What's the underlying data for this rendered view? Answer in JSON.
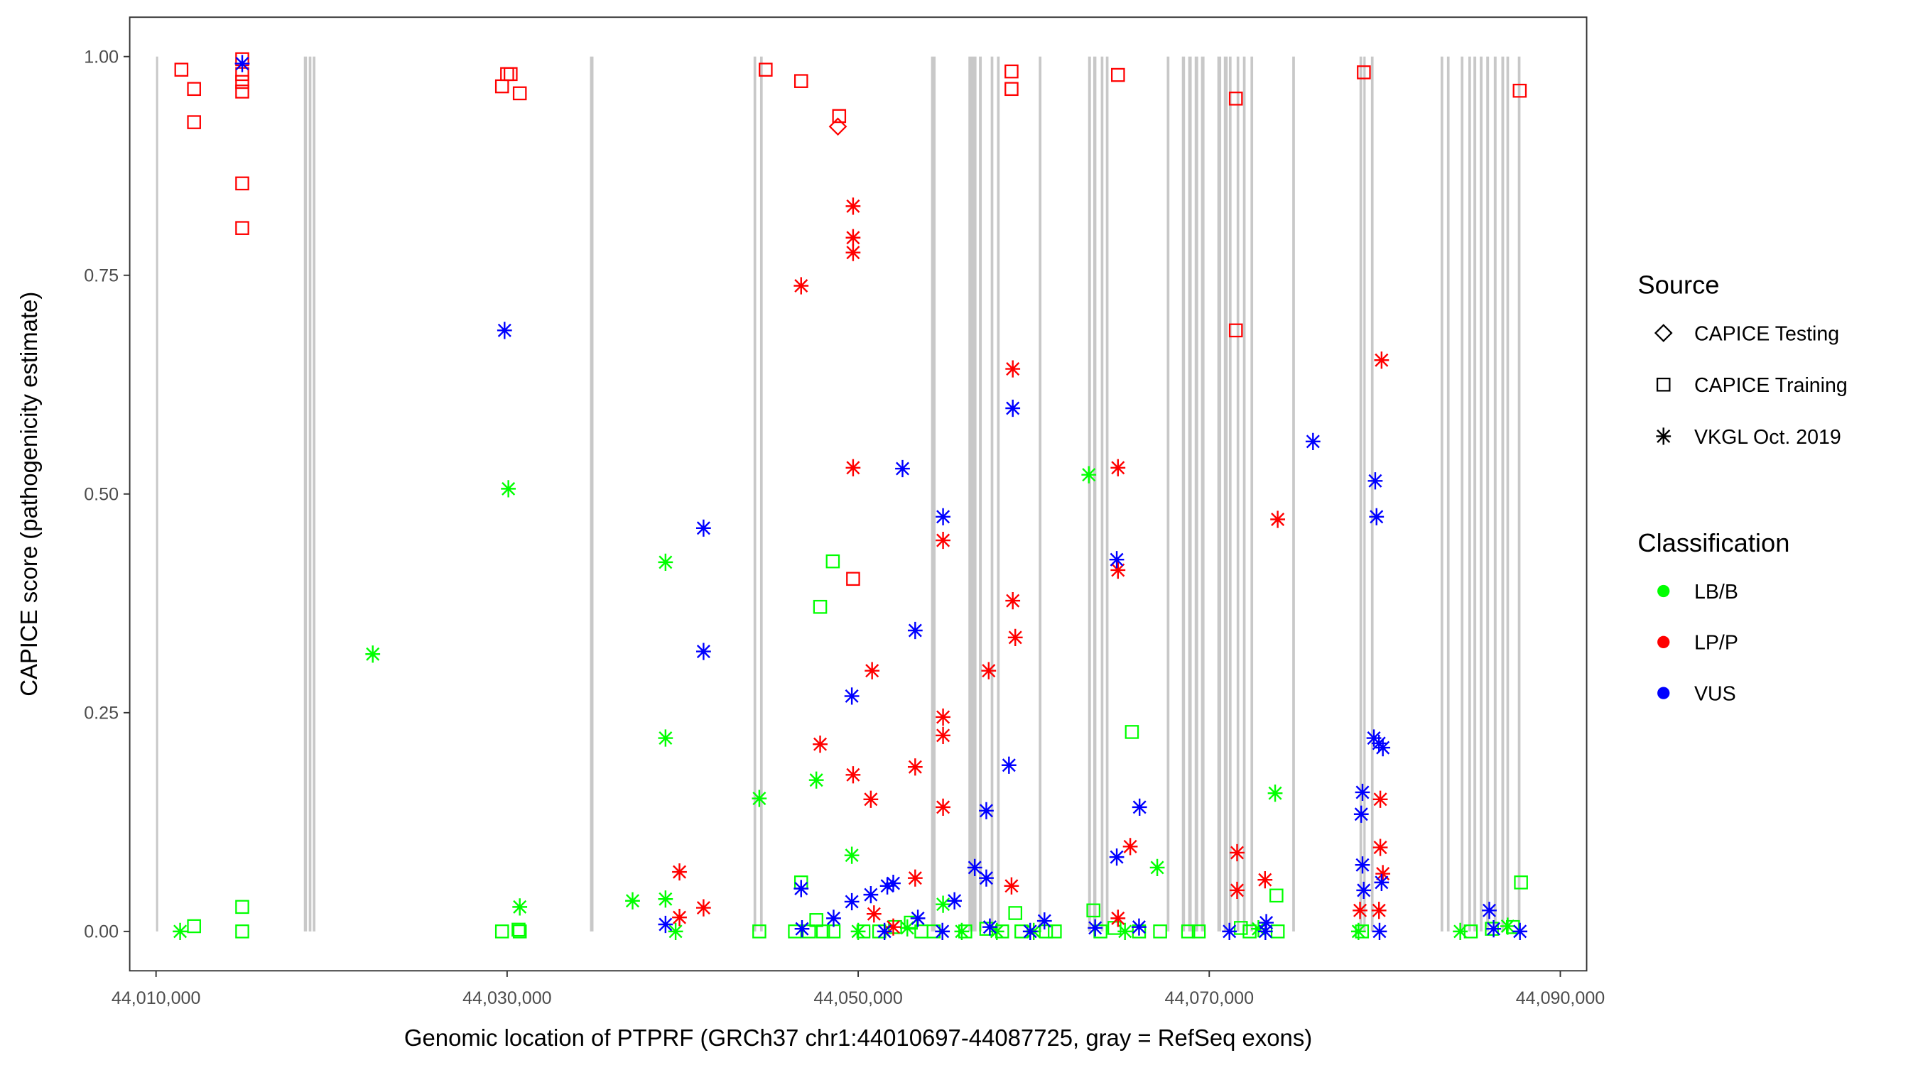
{
  "chart_data": {
    "type": "scatter",
    "xlabel": "Genomic location of PTPRF (GRCh37 chr1:44010697-44087725, gray = RefSeq exons)",
    "ylabel": "CAPICE score (pathogenicity estimate)",
    "xlim": [
      44008500,
      44091500
    ],
    "ylim": [
      -0.045,
      1.045
    ],
    "x_ticks": [
      44010000,
      44030000,
      44050000,
      44070000,
      44090000
    ],
    "x_tick_labels": [
      "44,010,000",
      "44,030,000",
      "44,050,000",
      "44,070,000",
      "44,090,000"
    ],
    "y_ticks": [
      0,
      0.25,
      0.5,
      0.75,
      1
    ],
    "y_tick_labels": [
      "0.00",
      "0.25",
      "0.50",
      "0.75",
      "1.00"
    ],
    "grid": false,
    "legend": {
      "placement": "right",
      "source_title": "Source",
      "source_items": [
        {
          "label": "CAPICE Testing",
          "shape": "diamond"
        },
        {
          "label": "CAPICE Training",
          "shape": "square"
        },
        {
          "label": "VKGL Oct. 2019",
          "shape": "asterisk"
        }
      ],
      "class_title": "Classification",
      "class_items": [
        {
          "label": "LB/B",
          "color": "#00ff00"
        },
        {
          "label": "LP/P",
          "color": "#ff0000"
        },
        {
          "label": "VUS",
          "color": "#0000ff"
        }
      ]
    },
    "colors": {
      "LB/B": "#00ff00",
      "LP/P": "#ff0000",
      "VUS": "#0000ff",
      "exon": "#c8c8c8"
    },
    "exons": [
      [
        44010000,
        120
      ],
      [
        44018420,
        180
      ],
      [
        44018700,
        150
      ],
      [
        44018930,
        150
      ],
      [
        44034720,
        200
      ],
      [
        44044040,
        150
      ],
      [
        44044410,
        150
      ],
      [
        44054150,
        260
      ],
      [
        44056280,
        460
      ],
      [
        44056880,
        160
      ],
      [
        44057550,
        150
      ],
      [
        44057910,
        150
      ],
      [
        44060290,
        150
      ],
      [
        44063100,
        160
      ],
      [
        44063390,
        180
      ],
      [
        44063820,
        150
      ],
      [
        44064110,
        150
      ],
      [
        44067580,
        150
      ],
      [
        44068440,
        180
      ],
      [
        44068800,
        200
      ],
      [
        44069170,
        200
      ],
      [
        44069530,
        200
      ],
      [
        44070460,
        220
      ],
      [
        44070830,
        220
      ],
      [
        44071120,
        150
      ],
      [
        44071560,
        150
      ],
      [
        44071920,
        150
      ],
      [
        44072350,
        150
      ],
      [
        44074730,
        150
      ],
      [
        44078560,
        150
      ],
      [
        44078780,
        130
      ],
      [
        44079210,
        150
      ],
      [
        44083180,
        150
      ],
      [
        44083540,
        150
      ],
      [
        44084330,
        150
      ],
      [
        44084760,
        150
      ],
      [
        44085050,
        160
      ],
      [
        44085410,
        160
      ],
      [
        44085780,
        160
      ],
      [
        44086210,
        160
      ],
      [
        44086640,
        160
      ],
      [
        44086930,
        150
      ],
      [
        44087580,
        150
      ]
    ],
    "points": [
      [
        44011444,
        0.985,
        "square",
        "LP/P"
      ],
      [
        44012166,
        0.963,
        "square",
        "LP/P"
      ],
      [
        44012166,
        0.925,
        "square",
        "LP/P"
      ],
      [
        44014910,
        0.997,
        "square",
        "LP/P"
      ],
      [
        44014910,
        0.98,
        "square",
        "LP/P"
      ],
      [
        44014910,
        0.971,
        "square",
        "LP/P"
      ],
      [
        44014910,
        0.96,
        "square",
        "LP/P"
      ],
      [
        44014910,
        0.855,
        "square",
        "LP/P"
      ],
      [
        44014910,
        0.804,
        "square",
        "LP/P"
      ],
      [
        44029711,
        0.966,
        "square",
        "LP/P"
      ],
      [
        44030000,
        0.98,
        "square",
        "LP/P"
      ],
      [
        44030200,
        0.98,
        "square",
        "LP/P"
      ],
      [
        44030721,
        0.958,
        "square",
        "LP/P"
      ],
      [
        44044728,
        0.985,
        "square",
        "LP/P"
      ],
      [
        44046750,
        0.972,
        "square",
        "LP/P"
      ],
      [
        44048916,
        0.932,
        "square",
        "LP/P"
      ],
      [
        44049710,
        0.403,
        "square",
        "LP/P"
      ],
      [
        44058735,
        0.983,
        "square",
        "LP/P"
      ],
      [
        44058735,
        0.963,
        "square",
        "LP/P"
      ],
      [
        44064800,
        0.979,
        "square",
        "LP/P"
      ],
      [
        44071514,
        0.952,
        "square",
        "LP/P"
      ],
      [
        44071514,
        0.687,
        "square",
        "LP/P"
      ],
      [
        44078806,
        0.982,
        "square",
        "LP/P"
      ],
      [
        44087687,
        0.961,
        "square",
        "LP/P"
      ],
      [
        44048844,
        0.92,
        "diamond",
        "LP/P"
      ],
      [
        44012166,
        0.006,
        "square",
        "LB/B"
      ],
      [
        44014910,
        0.028,
        "square",
        "LB/B"
      ],
      [
        44014910,
        0,
        "square",
        "LB/B"
      ],
      [
        44029711,
        0,
        "square",
        "LB/B"
      ],
      [
        44030721,
        0,
        "square",
        "LB/B"
      ],
      [
        44030650,
        0.002,
        "square",
        "LB/B"
      ],
      [
        44044367,
        0,
        "square",
        "LB/B"
      ],
      [
        44046750,
        0.056,
        "square",
        "LB/B"
      ],
      [
        44048555,
        0.423,
        "square",
        "LB/B"
      ],
      [
        44047833,
        0.371,
        "square",
        "LB/B"
      ],
      [
        44047616,
        0.013,
        "square",
        "LB/B"
      ],
      [
        44058950,
        0.021,
        "square",
        "LB/B"
      ],
      [
        44065594,
        0.228,
        "square",
        "LB/B"
      ],
      [
        44063400,
        0.024,
        "square",
        "LB/B"
      ],
      [
        44073826,
        0.041,
        "square",
        "LB/B"
      ],
      [
        44087760,
        0.056,
        "square",
        "LB/B"
      ],
      [
        44046400,
        0,
        "square",
        "LB/B"
      ],
      [
        44047200,
        0,
        "square",
        "LB/B"
      ],
      [
        44048000,
        0,
        "square",
        "LB/B"
      ],
      [
        44048600,
        0,
        "square",
        "LB/B"
      ],
      [
        44050300,
        0,
        "square",
        "LB/B"
      ],
      [
        44051200,
        0,
        "square",
        "LB/B"
      ],
      [
        44052100,
        0.005,
        "square",
        "LB/B"
      ],
      [
        44053000,
        0.01,
        "square",
        "LB/B"
      ],
      [
        44053600,
        0,
        "square",
        "LB/B"
      ],
      [
        44054300,
        0,
        "square",
        "LB/B"
      ],
      [
        44056100,
        0,
        "square",
        "LB/B"
      ],
      [
        44057300,
        0.003,
        "square",
        "LB/B"
      ],
      [
        44058200,
        0,
        "square",
        "LB/B"
      ],
      [
        44059300,
        0,
        "square",
        "LB/B"
      ],
      [
        44060700,
        0,
        "square",
        "LB/B"
      ],
      [
        44061200,
        0,
        "square",
        "LB/B"
      ],
      [
        44063800,
        0,
        "square",
        "LB/B"
      ],
      [
        44064600,
        0.004,
        "square",
        "LB/B"
      ],
      [
        44066000,
        0,
        "square",
        "LB/B"
      ],
      [
        44067200,
        0,
        "square",
        "LB/B"
      ],
      [
        44068800,
        0,
        "square",
        "LB/B"
      ],
      [
        44069400,
        0,
        "square",
        "LB/B"
      ],
      [
        44071800,
        0.004,
        "square",
        "LB/B"
      ],
      [
        44072300,
        0,
        "square",
        "LB/B"
      ],
      [
        44073900,
        0,
        "square",
        "LB/B"
      ],
      [
        44078700,
        0,
        "square",
        "LB/B"
      ],
      [
        44084900,
        0,
        "square",
        "LB/B"
      ],
      [
        44086100,
        0.003,
        "square",
        "LB/B"
      ],
      [
        44087300,
        0.005,
        "square",
        "LB/B"
      ],
      [
        44011372,
        0,
        "asterisk",
        "LB/B"
      ],
      [
        44022346,
        0.317,
        "asterisk",
        "LB/B"
      ],
      [
        44030072,
        0.506,
        "asterisk",
        "LB/B"
      ],
      [
        44030721,
        0.028,
        "asterisk",
        "LB/B"
      ],
      [
        44037147,
        0.035,
        "asterisk",
        "LB/B"
      ],
      [
        44039024,
        0.422,
        "asterisk",
        "LB/B"
      ],
      [
        44039024,
        0.221,
        "asterisk",
        "LB/B"
      ],
      [
        44039024,
        0.037,
        "asterisk",
        "LB/B"
      ],
      [
        44039600,
        0,
        "asterisk",
        "LB/B"
      ],
      [
        44044367,
        0.152,
        "asterisk",
        "LB/B"
      ],
      [
        44047616,
        0.173,
        "asterisk",
        "LB/B"
      ],
      [
        44049638,
        0.087,
        "asterisk",
        "LB/B"
      ],
      [
        44054836,
        0.031,
        "asterisk",
        "LB/B"
      ],
      [
        44063139,
        0.522,
        "asterisk",
        "LB/B"
      ],
      [
        44067038,
        0.073,
        "asterisk",
        "LB/B"
      ],
      [
        44073754,
        0.158,
        "asterisk",
        "LB/B"
      ],
      [
        44050000,
        0,
        "asterisk",
        "LB/B"
      ],
      [
        44052800,
        0.004,
        "asterisk",
        "LB/B"
      ],
      [
        44055900,
        0,
        "asterisk",
        "LB/B"
      ],
      [
        44057900,
        0,
        "asterisk",
        "LB/B"
      ],
      [
        44060000,
        0,
        "asterisk",
        "LB/B"
      ],
      [
        44065200,
        0,
        "asterisk",
        "LB/B"
      ],
      [
        44072800,
        0.003,
        "asterisk",
        "LB/B"
      ],
      [
        44078500,
        0,
        "asterisk",
        "LB/B"
      ],
      [
        44084300,
        0,
        "asterisk",
        "LB/B"
      ],
      [
        44087000,
        0.006,
        "asterisk",
        "LB/B"
      ],
      [
        44039819,
        0.068,
        "asterisk",
        "LP/P"
      ],
      [
        44039819,
        0.016,
        "asterisk",
        "LP/P"
      ],
      [
        44041190,
        0.027,
        "asterisk",
        "LP/P"
      ],
      [
        44046750,
        0.738,
        "asterisk",
        "LP/P"
      ],
      [
        44047833,
        0.214,
        "asterisk",
        "LP/P"
      ],
      [
        44049710,
        0.829,
        "asterisk",
        "LP/P"
      ],
      [
        44049710,
        0.793,
        "asterisk",
        "LP/P"
      ],
      [
        44049710,
        0.776,
        "asterisk",
        "LP/P"
      ],
      [
        44049710,
        0.53,
        "asterisk",
        "LP/P"
      ],
      [
        44049710,
        0.179,
        "asterisk",
        "LP/P"
      ],
      [
        44050793,
        0.298,
        "asterisk",
        "LP/P"
      ],
      [
        44050720,
        0.151,
        "asterisk",
        "LP/P"
      ],
      [
        44053248,
        0.188,
        "asterisk",
        "LP/P"
      ],
      [
        44053248,
        0.061,
        "asterisk",
        "LP/P"
      ],
      [
        44054836,
        0.447,
        "asterisk",
        "LP/P"
      ],
      [
        44054836,
        0.245,
        "asterisk",
        "LP/P"
      ],
      [
        44054836,
        0.224,
        "asterisk",
        "LP/P"
      ],
      [
        44054836,
        0.142,
        "asterisk",
        "LP/P"
      ],
      [
        44057435,
        0.298,
        "asterisk",
        "LP/P"
      ],
      [
        44058735,
        0.052,
        "asterisk",
        "LP/P"
      ],
      [
        44058807,
        0.643,
        "asterisk",
        "LP/P"
      ],
      [
        44058807,
        0.378,
        "asterisk",
        "LP/P"
      ],
      [
        44058950,
        0.336,
        "asterisk",
        "LP/P"
      ],
      [
        44064800,
        0.53,
        "asterisk",
        "LP/P"
      ],
      [
        44064800,
        0.413,
        "asterisk",
        "LP/P"
      ],
      [
        44065500,
        0.097,
        "asterisk",
        "LP/P"
      ],
      [
        44064800,
        0.015,
        "asterisk",
        "LP/P"
      ],
      [
        44071587,
        0.09,
        "asterisk",
        "LP/P"
      ],
      [
        44071587,
        0.047,
        "asterisk",
        "LP/P"
      ],
      [
        44073177,
        0.059,
        "asterisk",
        "LP/P"
      ],
      [
        44073899,
        0.471,
        "asterisk",
        "LP/P"
      ],
      [
        44079817,
        0.653,
        "asterisk",
        "LP/P"
      ],
      [
        44079745,
        0.151,
        "asterisk",
        "LP/P"
      ],
      [
        44079745,
        0.096,
        "asterisk",
        "LP/P"
      ],
      [
        44079890,
        0.066,
        "asterisk",
        "LP/P"
      ],
      [
        44078590,
        0.024,
        "asterisk",
        "LP/P"
      ],
      [
        44079670,
        0.024,
        "asterisk",
        "LP/P"
      ],
      [
        44050900,
        0.02,
        "asterisk",
        "LP/P"
      ],
      [
        44052000,
        0.005,
        "asterisk",
        "LP/P"
      ],
      [
        44014910,
        0.992,
        "asterisk",
        "VUS"
      ],
      [
        44029855,
        0.687,
        "asterisk",
        "VUS"
      ],
      [
        44039024,
        0.008,
        "asterisk",
        "VUS"
      ],
      [
        44041190,
        0.461,
        "asterisk",
        "VUS"
      ],
      [
        44041190,
        0.32,
        "asterisk",
        "VUS"
      ],
      [
        44046750,
        0.049,
        "asterisk",
        "VUS"
      ],
      [
        44048600,
        0.015,
        "asterisk",
        "VUS"
      ],
      [
        44049638,
        0.269,
        "asterisk",
        "VUS"
      ],
      [
        44049638,
        0.034,
        "asterisk",
        "VUS"
      ],
      [
        44050720,
        0.042,
        "asterisk",
        "VUS"
      ],
      [
        44051660,
        0.052,
        "asterisk",
        "VUS"
      ],
      [
        44052000,
        0.055,
        "asterisk",
        "VUS"
      ],
      [
        44052526,
        0.529,
        "asterisk",
        "VUS"
      ],
      [
        44053248,
        0.344,
        "asterisk",
        "VUS"
      ],
      [
        44054836,
        0.474,
        "asterisk",
        "VUS"
      ],
      [
        44055486,
        0.035,
        "asterisk",
        "VUS"
      ],
      [
        44056641,
        0.073,
        "asterisk",
        "VUS"
      ],
      [
        44057300,
        0.061,
        "asterisk",
        "VUS"
      ],
      [
        44057300,
        0.138,
        "asterisk",
        "VUS"
      ],
      [
        44058807,
        0.598,
        "asterisk",
        "VUS"
      ],
      [
        44058590,
        0.19,
        "asterisk",
        "VUS"
      ],
      [
        44060612,
        0.012,
        "asterisk",
        "VUS"
      ],
      [
        44064730,
        0.425,
        "asterisk",
        "VUS"
      ],
      [
        44064730,
        0.085,
        "asterisk",
        "VUS"
      ],
      [
        44066030,
        0.142,
        "asterisk",
        "VUS"
      ],
      [
        44075910,
        0.56,
        "asterisk",
        "VUS"
      ],
      [
        44079456,
        0.515,
        "asterisk",
        "VUS"
      ],
      [
        44079530,
        0.474,
        "asterisk",
        "VUS"
      ],
      [
        44079380,
        0.221,
        "asterisk",
        "VUS"
      ],
      [
        44079670,
        0.215,
        "asterisk",
        "VUS"
      ],
      [
        44079890,
        0.21,
        "asterisk",
        "VUS"
      ],
      [
        44078730,
        0.159,
        "asterisk",
        "VUS"
      ],
      [
        44078660,
        0.134,
        "asterisk",
        "VUS"
      ],
      [
        44078730,
        0.076,
        "asterisk",
        "VUS"
      ],
      [
        44078800,
        0.047,
        "asterisk",
        "VUS"
      ],
      [
        44079817,
        0.056,
        "asterisk",
        "VUS"
      ],
      [
        44085954,
        0.024,
        "asterisk",
        "VUS"
      ],
      [
        44073250,
        0.01,
        "asterisk",
        "VUS"
      ],
      [
        44071150,
        0,
        "asterisk",
        "VUS"
      ],
      [
        44046800,
        0.003,
        "asterisk",
        "VUS"
      ],
      [
        44051500,
        0,
        "asterisk",
        "VUS"
      ],
      [
        44053400,
        0.015,
        "asterisk",
        "VUS"
      ],
      [
        44054800,
        0,
        "asterisk",
        "VUS"
      ],
      [
        44057500,
        0.005,
        "asterisk",
        "VUS"
      ],
      [
        44059800,
        0,
        "asterisk",
        "VUS"
      ],
      [
        44063500,
        0.004,
        "asterisk",
        "VUS"
      ],
      [
        44066000,
        0.005,
        "asterisk",
        "VUS"
      ],
      [
        44073200,
        0,
        "asterisk",
        "VUS"
      ],
      [
        44079700,
        0,
        "asterisk",
        "VUS"
      ],
      [
        44086200,
        0.003,
        "asterisk",
        "VUS"
      ],
      [
        44087700,
        0,
        "asterisk",
        "VUS"
      ]
    ]
  }
}
